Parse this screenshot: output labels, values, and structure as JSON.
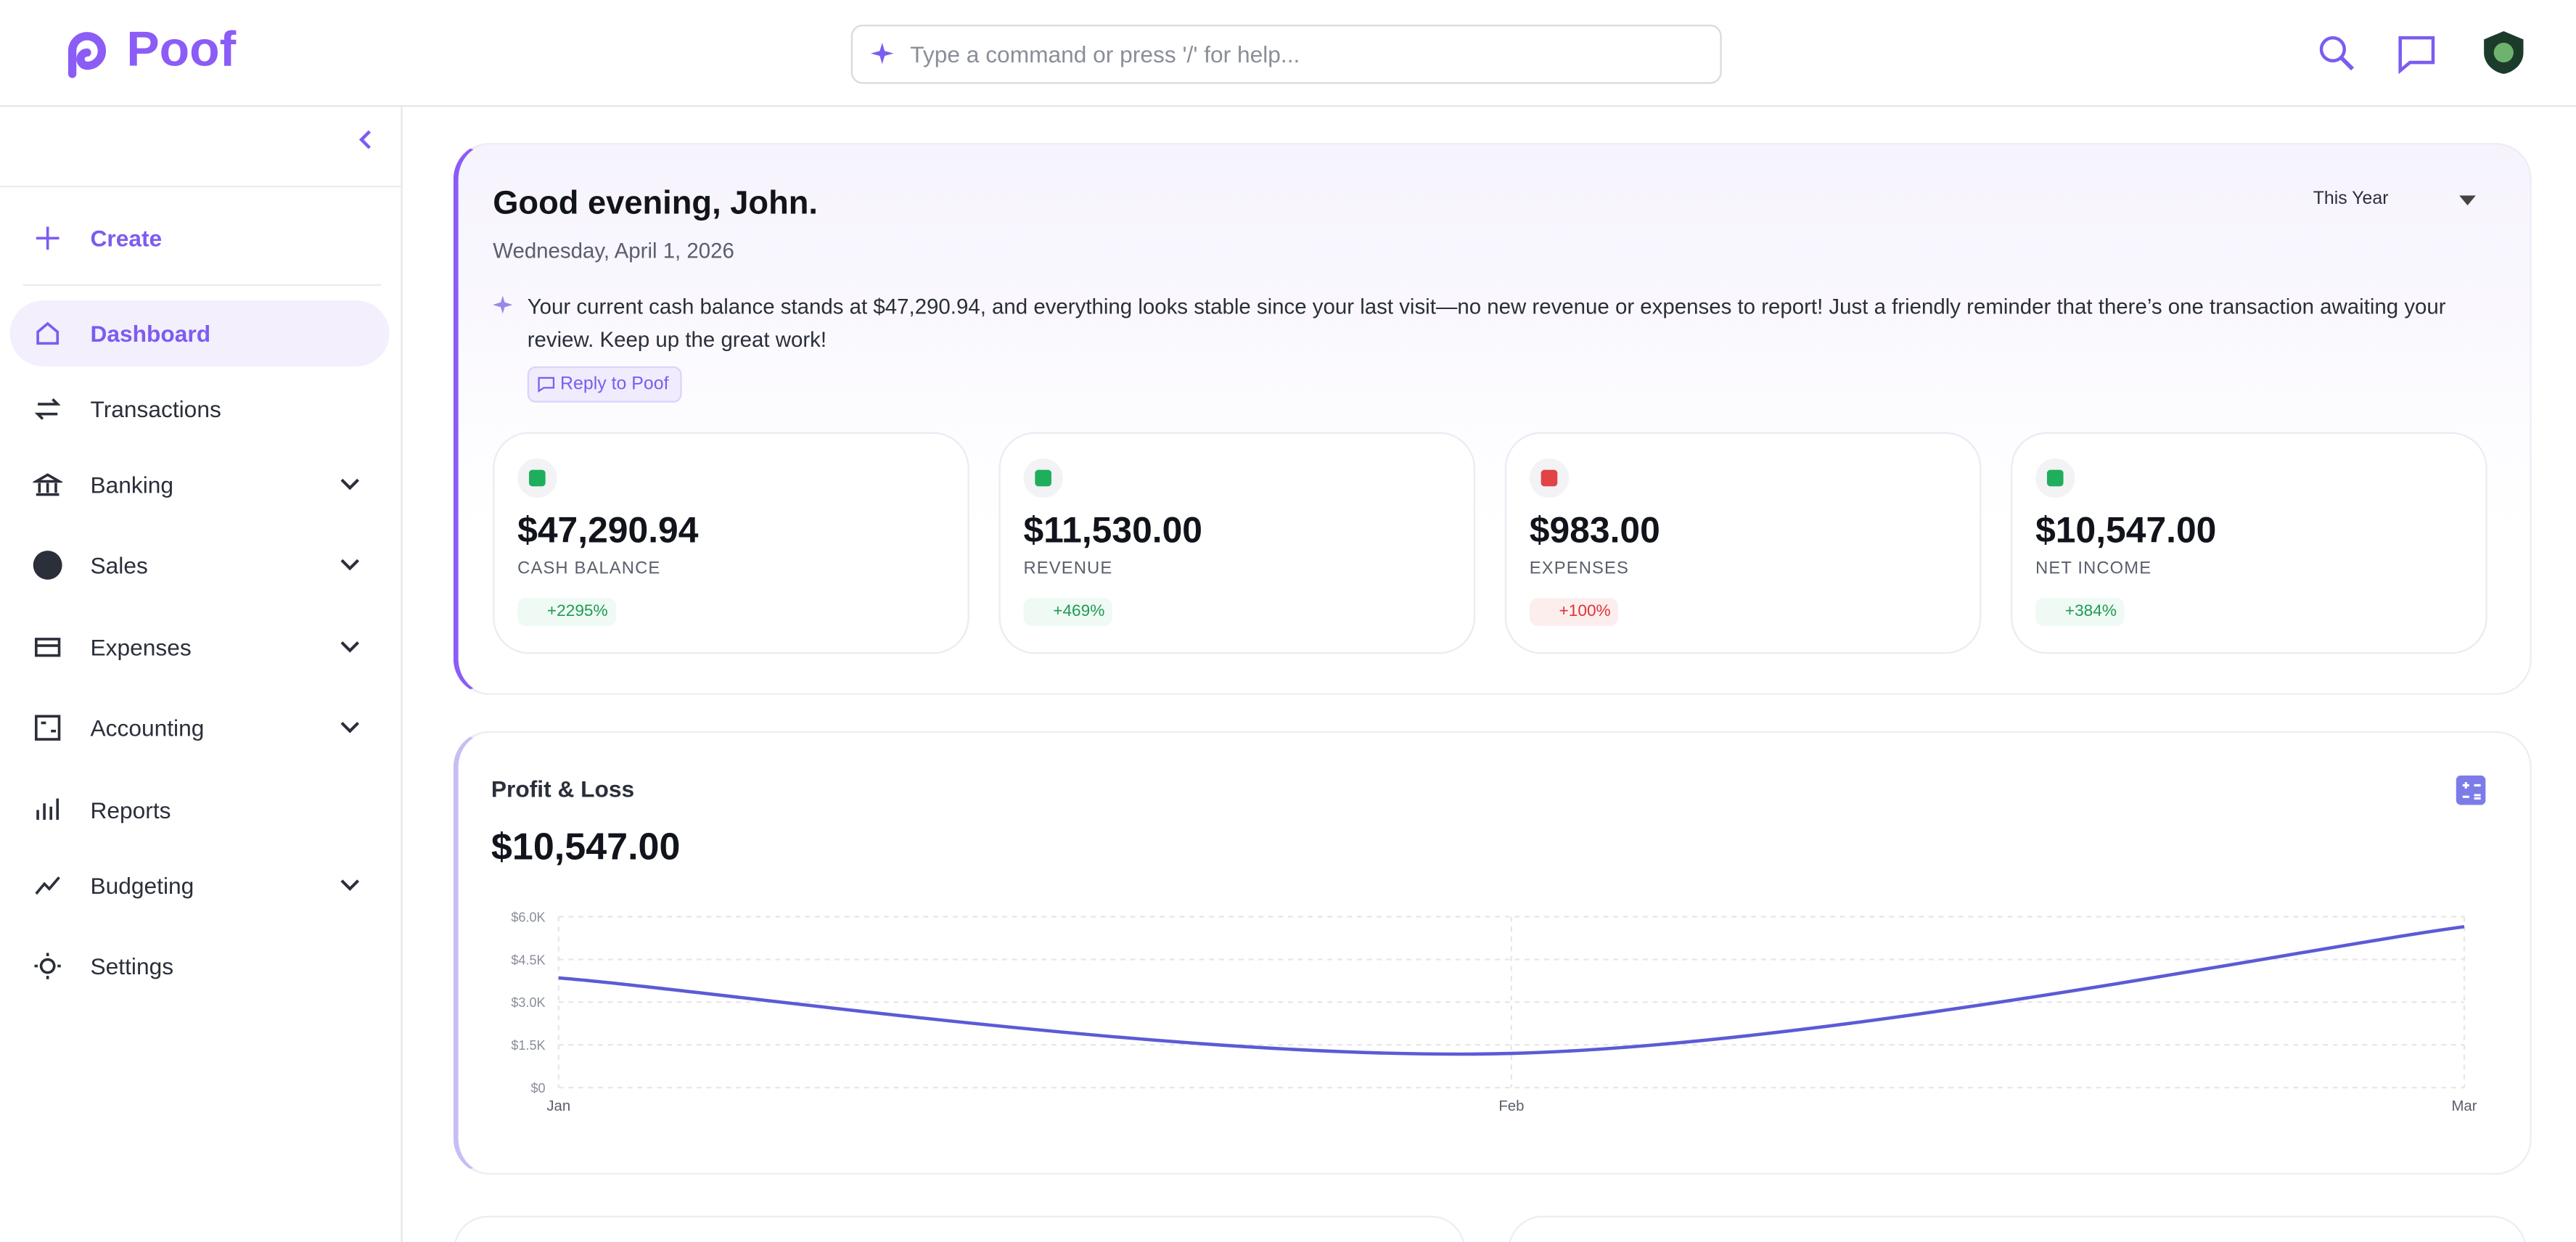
{
  "header": {
    "logo": "Poof",
    "search_placeholder": "Type a command or press '/' for help..."
  },
  "sidebar": {
    "items": [
      "Create",
      "Dashboard",
      "Transactions",
      "Banking",
      "Sales",
      "Expenses",
      "Accounting",
      "Reports",
      "Budgeting",
      "Settings"
    ]
  },
  "greeting": {
    "title": "Good evening, John.",
    "date": "Wednesday, April 1, 2026",
    "period": "This Year",
    "message": "Your current cash balance stands at $47,290.94, and everything looks stable since your last visit—no new revenue or expenses to report! Just a friendly reminder that there’s one transaction awaiting your review. Keep up the great work!",
    "reply": "Reply to Poof"
  },
  "stats": [
    {
      "value": "$47,290.94",
      "label": "CASH BALANCE",
      "change": "+2295%"
    },
    {
      "value": "$11,530.00",
      "label": "REVENUE",
      "change": "+469%"
    },
    {
      "value": "$983.00",
      "label": "EXPENSES",
      "change": "+100%"
    },
    {
      "value": "$10,547.00",
      "label": "NET INCOME",
      "change": "+384%"
    }
  ],
  "chart_data": {
    "type": "line",
    "title": "Profit & Loss",
    "subtitle": "$10,547.00",
    "categories": [
      "Jan",
      "Feb",
      "Mar"
    ],
    "values": [
      3850,
      1200,
      5650
    ],
    "color": "#5b5bd6",
    "ylim": [
      0,
      6000
    ],
    "yticks": [
      {
        "value": 0,
        "label": "$0"
      },
      {
        "value": 1500,
        "label": "$1.5K"
      },
      {
        "value": 3000,
        "label": "$3.0K"
      },
      {
        "value": 4500,
        "label": "$4.5K"
      },
      {
        "value": 6000,
        "label": "$6.0K"
      }
    ],
    "grid": true
  }
}
